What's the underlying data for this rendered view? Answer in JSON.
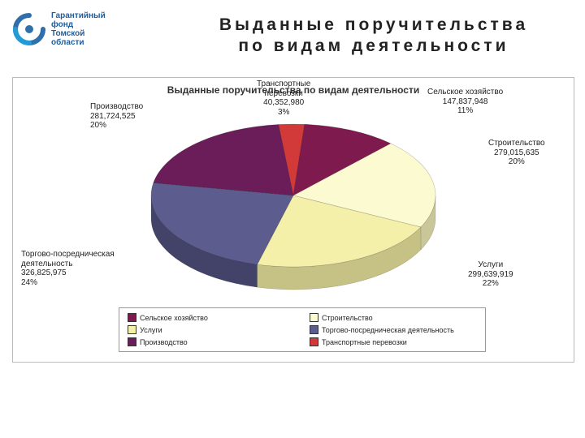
{
  "logo": {
    "line1": "Гарантийный",
    "line2": "фонд",
    "line3": "Томской",
    "line4": "области",
    "primary": "#2f6fab",
    "accent": "#239bd6"
  },
  "title_line1": "Выданные поручительства",
  "title_line2": "по видам деятельности",
  "chart": {
    "type": "pie-3d",
    "overtitle": "Выданные поручительства по видам деятельности",
    "background_color": "#ffffff",
    "border_color": "#bbbbbb",
    "slices": [
      {
        "key": "agri",
        "label": "Сельское хозяйство",
        "value": 147837948,
        "percent": 11,
        "color": "#7e1a4d",
        "side": "#5a1036"
      },
      {
        "key": "constr",
        "label": "Строительство",
        "value": 279015635,
        "percent": 20,
        "color": "#fcfad0",
        "side": "#c9c69a"
      },
      {
        "key": "services",
        "label": "Услуги",
        "value": 299639919,
        "percent": 22,
        "color": "#f4efa9",
        "side": "#c6c184"
      },
      {
        "key": "trade",
        "label": "Торгово-посредническая деятельность",
        "value": 326825975,
        "percent": 24,
        "color": "#5c5c8f",
        "side": "#43436a"
      },
      {
        "key": "prod",
        "label": "Производство",
        "value": 281724525,
        "percent": 20,
        "color": "#6a1d58",
        "side": "#4d1440"
      },
      {
        "key": "transport",
        "label": "Транспортные перевозки",
        "value": 40352980,
        "percent": 3,
        "color": "#d23a3a",
        "side": "#9a2a2a"
      }
    ],
    "legend_order": [
      "agri",
      "constr",
      "services",
      "trade",
      "prod",
      "transport"
    ],
    "labels": {
      "transport": {
        "head": "Транспортные",
        "mid": "перевозки",
        "value": "40,352,980",
        "pct": "3%"
      },
      "agri": {
        "head": "Сельское хозяйство",
        "value": "147,837,948",
        "pct": "11%"
      },
      "constr": {
        "head": "Строительство",
        "value": "279,015,635",
        "pct": "20%"
      },
      "services": {
        "head": "Услуги",
        "value": "299,639,919",
        "pct": "22%"
      },
      "trade": {
        "head": "Торгово-посредническая",
        "mid": "деятельность",
        "value": "326,825,975",
        "pct": "24%"
      },
      "prod": {
        "head": "Производство",
        "value": "281,724,525",
        "pct": "20%"
      }
    }
  }
}
